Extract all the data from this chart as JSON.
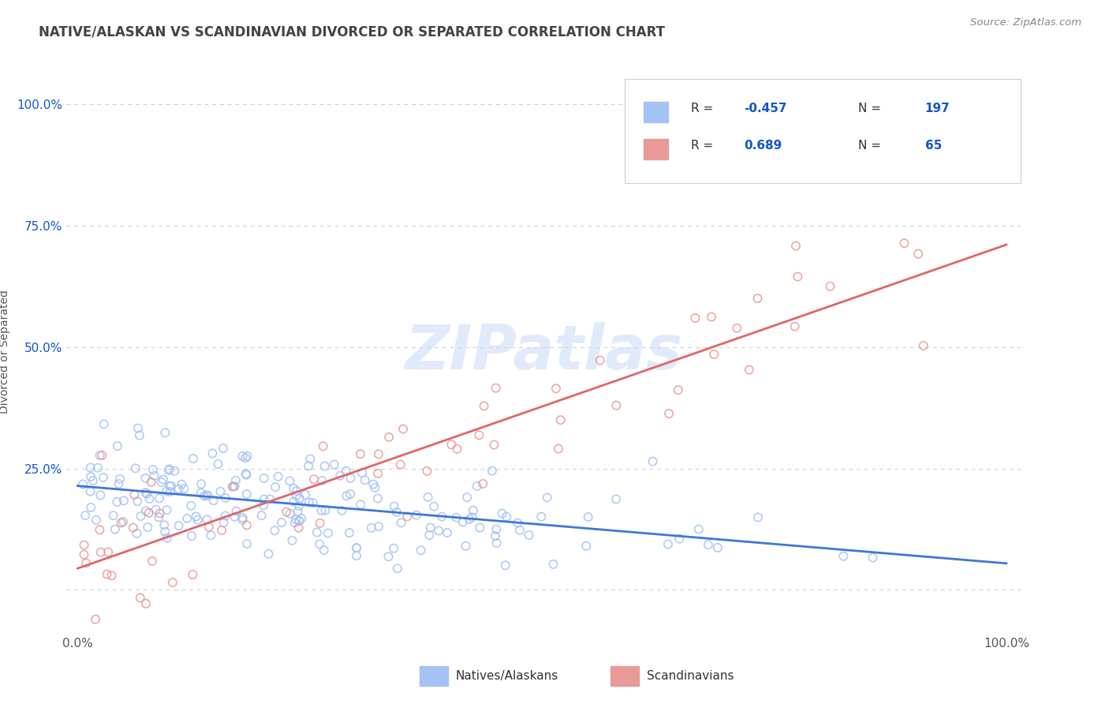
{
  "title": "NATIVE/ALASKAN VS SCANDINAVIAN DIVORCED OR SEPARATED CORRELATION CHART",
  "source": "Source: ZipAtlas.com",
  "ylabel": "Divorced or Separated",
  "blue_scatter_color": "#a4c2f4",
  "pink_scatter_color": "#ea9999",
  "blue_line_color": "#3c78d8",
  "pink_line_color": "#e06666",
  "blue_legend_color": "#a4c2f4",
  "pink_legend_color": "#ea9999",
  "legend_text_color": "#1155cc",
  "title_color": "#434343",
  "background_color": "#ffffff",
  "grid_color": "#b7b7b7",
  "watermark_color": "#c9daf8",
  "n_native": 197,
  "n_scand": 65,
  "r_native": -0.457,
  "r_scand": 0.689,
  "native_seed": 42,
  "scand_seed": 77
}
